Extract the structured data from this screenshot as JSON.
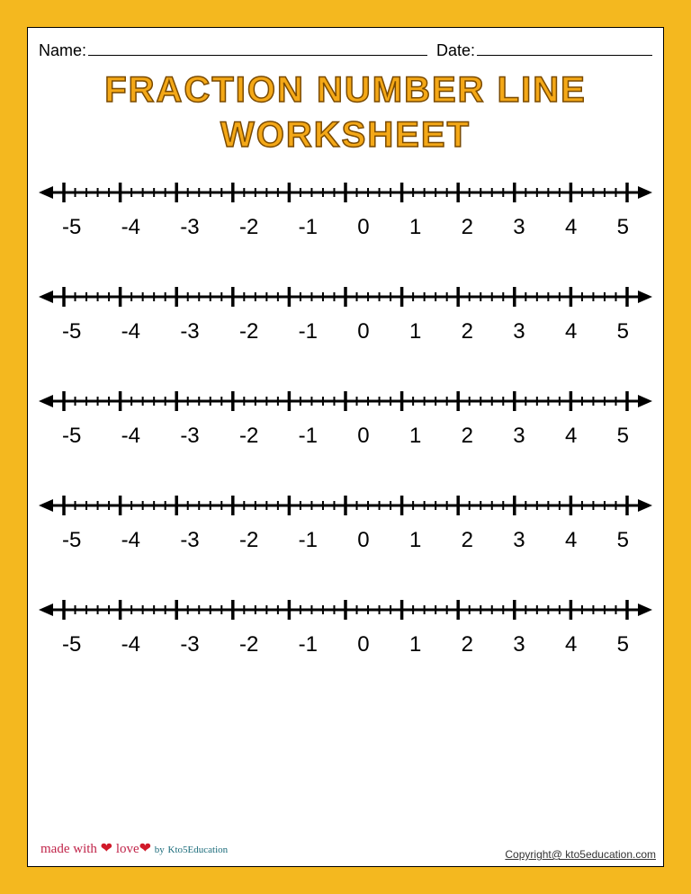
{
  "header": {
    "name_label": "Name:",
    "date_label": "Date:"
  },
  "title_line1": "FRACTION NUMBER LINE",
  "title_line2": "WORKSHEET",
  "numberlines": {
    "count": 5,
    "range_min": -5,
    "range_max": 5,
    "major_step": 1,
    "minor_per_major": 5,
    "labels": [
      "-5",
      "-4",
      "-3",
      "-2",
      "-1",
      "0",
      "1",
      "2",
      "3",
      "4",
      "5"
    ],
    "line_color": "#000000",
    "line_width": 3,
    "major_tick_height": 22,
    "minor_tick_height": 10,
    "label_fontsize": 24,
    "label_font": "Comic Sans MS"
  },
  "footer": {
    "made_with": "made with",
    "love": "love",
    "by": "by",
    "brand": "Kto5Education",
    "copyright": "Copyright@ kto5education.com"
  },
  "colors": {
    "border": "#f4b81f",
    "page_bg": "#ffffff",
    "title_fill": "#f4a817",
    "title_stroke": "#7a4a00",
    "text": "#000000"
  }
}
